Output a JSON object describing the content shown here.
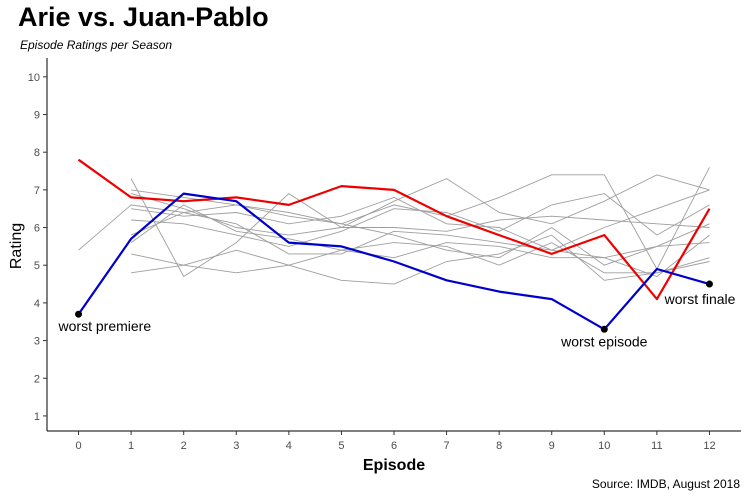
{
  "chart_data": {
    "type": "line",
    "title": "Arie vs. Juan-Pablo",
    "subtitle": "Episode Ratings per Season",
    "caption": "Source: IMDB, August 2018",
    "xlabel": "Episode",
    "ylabel": "Rating",
    "xlim": [
      -0.6,
      12.6
    ],
    "ylim": [
      0.6,
      10.5
    ],
    "xticks": [
      "0",
      "1",
      "2",
      "3",
      "4",
      "5",
      "6",
      "7",
      "8",
      "9",
      "10",
      "11",
      "12"
    ],
    "yticks": [
      "1",
      "2",
      "3",
      "4",
      "5",
      "6",
      "7",
      "8",
      "9",
      "10"
    ],
    "grid": false,
    "background_series_color": "#9e9e9e",
    "background_series": [
      {
        "x": [
          1,
          2,
          3,
          4,
          5,
          6,
          7,
          8,
          9,
          10,
          11,
          12
        ],
        "values": [
          7.3,
          4.7,
          5.6,
          6.9,
          6.0,
          6.7,
          7.3,
          6.4,
          6.1,
          6.7,
          7.4,
          7.0
        ]
      },
      {
        "x": [
          1,
          2,
          3,
          4,
          5,
          6,
          7,
          8,
          9,
          10,
          11,
          12
        ],
        "values": [
          7.0,
          6.8,
          6.6,
          6.4,
          6.1,
          6.6,
          6.3,
          6.8,
          7.4,
          7.4,
          4.9,
          7.6
        ]
      },
      {
        "x": [
          1,
          2,
          3,
          4,
          5,
          6,
          7,
          8,
          9,
          10,
          11,
          12
        ],
        "values": [
          6.9,
          6.5,
          6.0,
          5.8,
          6.0,
          6.0,
          5.9,
          6.2,
          6.3,
          6.2,
          6.1,
          6.0
        ]
      },
      {
        "x": [
          1,
          2,
          3,
          4,
          5,
          6,
          7,
          8,
          9,
          10,
          11,
          12
        ],
        "values": [
          6.5,
          6.3,
          6.4,
          6.1,
          6.3,
          6.8,
          6.1,
          6.0,
          5.4,
          6.0,
          6.5,
          7.0
        ]
      },
      {
        "x": [
          1,
          2,
          3,
          4,
          5,
          6,
          7,
          8,
          9,
          10,
          11,
          12
        ],
        "values": [
          6.2,
          6.1,
          5.8,
          5.5,
          5.9,
          6.5,
          6.4,
          5.9,
          6.6,
          6.9,
          5.8,
          6.6
        ]
      },
      {
        "x": [
          1,
          2,
          3,
          4,
          5,
          6,
          7,
          8,
          9,
          10,
          11,
          12
        ],
        "values": [
          5.8,
          6.4,
          6.6,
          6.3,
          6.1,
          5.8,
          5.4,
          5.2,
          6.0,
          5.0,
          5.5,
          6.1
        ]
      },
      {
        "x": [
          1,
          2,
          3,
          4,
          5,
          6,
          7,
          8,
          9,
          10,
          11,
          12
        ],
        "values": [
          5.3,
          5.0,
          5.4,
          5.0,
          4.6,
          4.5,
          5.1,
          5.3,
          5.8,
          4.6,
          4.8,
          5.1
        ]
      },
      {
        "x": [
          1,
          2,
          3,
          4,
          5,
          6,
          7,
          8,
          9,
          10,
          11,
          12
        ],
        "values": [
          4.8,
          5.0,
          4.8,
          5.0,
          5.4,
          5.6,
          5.5,
          5.0,
          5.6,
          4.8,
          4.8,
          5.2
        ]
      },
      {
        "x": [
          1,
          2,
          3,
          4,
          5,
          6,
          7,
          8,
          9,
          10,
          11,
          12
        ],
        "values": [
          5.6,
          6.6,
          5.9,
          5.7,
          5.4,
          5.2,
          5.6,
          5.5,
          5.2,
          5.2,
          4.7,
          5.8
        ]
      },
      {
        "x": [
          0,
          1,
          2,
          3,
          4,
          5,
          6,
          7,
          8,
          9,
          10,
          11,
          12
        ],
        "values": [
          5.4,
          6.6,
          6.4,
          6.1,
          5.3,
          5.3,
          5.9,
          5.8,
          5.6,
          5.4,
          5.2,
          5.5,
          5.6
        ]
      }
    ],
    "series": [
      {
        "color": "#ee0000",
        "x": [
          0,
          1,
          2,
          3,
          4,
          5,
          6,
          7,
          8,
          9,
          10,
          11,
          12
        ],
        "values": [
          7.8,
          6.8,
          6.7,
          6.8,
          6.6,
          7.1,
          7.0,
          6.3,
          5.8,
          5.3,
          5.8,
          4.1,
          6.5
        ]
      },
      {
        "color": "#0000cc",
        "x": [
          0,
          1,
          2,
          3,
          4,
          5,
          6,
          7,
          8,
          9,
          10,
          11,
          12
        ],
        "values": [
          3.7,
          5.7,
          6.9,
          6.7,
          5.6,
          5.5,
          5.1,
          4.6,
          4.3,
          4.1,
          3.3,
          4.9,
          4.5
        ]
      }
    ],
    "annotations": [
      {
        "label": "worst premiere",
        "x": 0,
        "y": 3.7
      },
      {
        "label": "worst episode",
        "x": 10,
        "y": 3.3
      },
      {
        "label": "worst finale",
        "x": 12,
        "y": 4.5
      }
    ]
  }
}
